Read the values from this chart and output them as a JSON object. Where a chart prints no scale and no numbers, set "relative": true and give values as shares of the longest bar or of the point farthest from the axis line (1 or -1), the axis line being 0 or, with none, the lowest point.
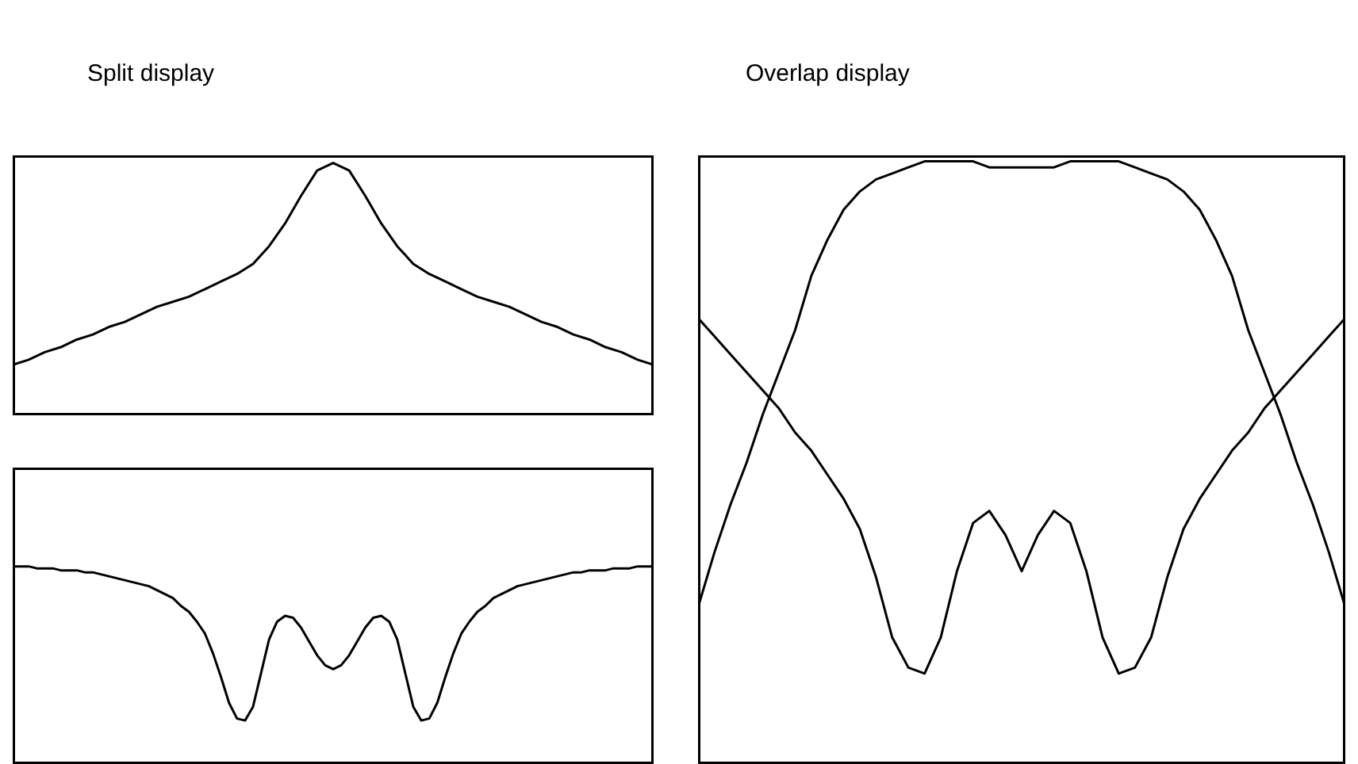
{
  "chart_data": [
    {
      "type": "line",
      "title": "Split display",
      "relative": true,
      "marker": "none",
      "categories": [
        null,
        null,
        null,
        null,
        null,
        null,
        null,
        null,
        null,
        null,
        null,
        null,
        null,
        null,
        null,
        null,
        null,
        null,
        null,
        null,
        null,
        null,
        null,
        null,
        null,
        null,
        null,
        null,
        null,
        null,
        null,
        null,
        null,
        null,
        null,
        null,
        null,
        null,
        null,
        null,
        null
      ],
      "series": [
        {
          "color": "#000000",
          "values": [
            0.2,
            0.22,
            0.25,
            0.27,
            0.3,
            0.32,
            0.35,
            0.37,
            0.4,
            0.43,
            0.45,
            0.47,
            0.5,
            0.53,
            0.56,
            0.6,
            0.67,
            0.76,
            0.87,
            0.97,
            1,
            0.97,
            0.87,
            0.76,
            0.67,
            0.6,
            0.56,
            0.53,
            0.5,
            0.47,
            0.45,
            0.43,
            0.4,
            0.37,
            0.35,
            0.32,
            0.3,
            0.27,
            0.25,
            0.22,
            0.2
          ]
        }
      ]
    },
    {
      "type": "line",
      "relative": true,
      "marker": "none",
      "categories": [
        null,
        null,
        null,
        null,
        null,
        null,
        null,
        null,
        null,
        null,
        null,
        null,
        null,
        null,
        null,
        null,
        null,
        null,
        null,
        null,
        null,
        null,
        null,
        null,
        null,
        null,
        null,
        null,
        null,
        null,
        null,
        null,
        null,
        null,
        null,
        null,
        null,
        null,
        null,
        null,
        null,
        null,
        null,
        null,
        null,
        null,
        null,
        null,
        null,
        null,
        null,
        null,
        null,
        null,
        null,
        null,
        null,
        null,
        null,
        null,
        null,
        null,
        null,
        null,
        null,
        null,
        null,
        null,
        null,
        null,
        null,
        null,
        null,
        null,
        null,
        null,
        null,
        null,
        null,
        null,
        null
      ],
      "series": [
        {
          "color": "#000000",
          "values": [
            1,
            1,
            1,
            0.99,
            0.99,
            0.99,
            0.98,
            0.98,
            0.98,
            0.97,
            0.97,
            0.96,
            0.95,
            0.94,
            0.93,
            0.92,
            0.91,
            0.9,
            0.88,
            0.86,
            0.84,
            0.8,
            0.77,
            0.72,
            0.66,
            0.56,
            0.44,
            0.31,
            0.23,
            0.22,
            0.29,
            0.46,
            0.63,
            0.72,
            0.75,
            0.74,
            0.69,
            0.62,
            0.55,
            0.5,
            0.48,
            0.5,
            0.55,
            0.62,
            0.69,
            0.74,
            0.75,
            0.72,
            0.63,
            0.46,
            0.29,
            0.22,
            0.23,
            0.31,
            0.44,
            0.56,
            0.66,
            0.72,
            0.77,
            0.8,
            0.84,
            0.86,
            0.88,
            0.9,
            0.91,
            0.92,
            0.93,
            0.94,
            0.95,
            0.96,
            0.97,
            0.97,
            0.98,
            0.98,
            0.98,
            0.99,
            0.99,
            0.99,
            1,
            1,
            1
          ]
        }
      ]
    },
    {
      "type": "line",
      "title": "Overlap display",
      "relative": true,
      "marker": "none",
      "categories": [
        null,
        null,
        null,
        null,
        null,
        null,
        null,
        null,
        null,
        null,
        null,
        null,
        null,
        null,
        null,
        null,
        null,
        null,
        null,
        null,
        null,
        null,
        null,
        null,
        null,
        null,
        null,
        null,
        null,
        null,
        null,
        null,
        null,
        null,
        null,
        null,
        null,
        null,
        null,
        null,
        null
      ],
      "series": [
        {
          "color": "#000000",
          "values": [
            0.26,
            0.35,
            0.43,
            0.5,
            0.58,
            0.65,
            0.72,
            0.81,
            0.87,
            0.92,
            0.95,
            0.97,
            0.98,
            0.99,
            1,
            1,
            1,
            1,
            0.99,
            0.99,
            0.99,
            0.99,
            0.99,
            1,
            1,
            1,
            1,
            0.99,
            0.98,
            0.97,
            0.95,
            0.92,
            0.87,
            0.81,
            0.72,
            0.65,
            0.58,
            0.5,
            0.43,
            0.35,
            0.26
          ]
        },
        {
          "color": "#000000",
          "values": [
            0.74,
            0.71,
            0.68,
            0.65,
            0.62,
            0.59,
            0.55,
            0.52,
            0.48,
            0.44,
            0.39,
            0.31,
            0.21,
            0.16,
            0.15,
            0.21,
            0.32,
            0.4,
            0.42,
            0.38,
            0.32,
            0.38,
            0.42,
            0.4,
            0.32,
            0.21,
            0.15,
            0.16,
            0.21,
            0.31,
            0.39,
            0.44,
            0.48,
            0.52,
            0.55,
            0.59,
            0.62,
            0.65,
            0.68,
            0.71,
            0.74
          ]
        }
      ]
    }
  ]
}
